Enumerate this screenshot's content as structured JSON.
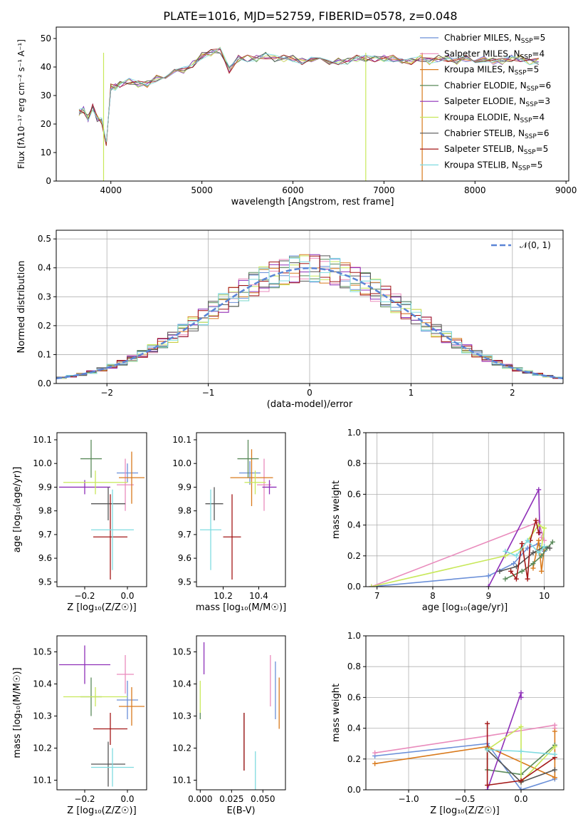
{
  "figure_title": "PLATE=1016, MJD=52759, FIBERID=0578, z=0.048",
  "legend_entries": [
    {
      "name": "Chabrier MILES",
      "sub": "SSP",
      "n": "5",
      "color": "#6a8fd8"
    },
    {
      "name": "Salpeter MILES",
      "sub": "SSP",
      "n": "4",
      "color": "#e98bbc"
    },
    {
      "name": "Kroupa MILES",
      "sub": "SSP",
      "n": "5",
      "color": "#d97a1c"
    },
    {
      "name": "Chabrier ELODIE",
      "sub": "SSP",
      "n": "6",
      "color": "#5a8a5a"
    },
    {
      "name": "Salpeter ELODIE",
      "sub": "SSP",
      "n": "3",
      "color": "#8e2fb8"
    },
    {
      "name": "Kroupa ELODIE",
      "sub": "SSP",
      "n": "4",
      "color": "#c8e85a"
    },
    {
      "name": "Chabrier STELIB",
      "sub": "SSP",
      "n": "6",
      "color": "#555555"
    },
    {
      "name": "Salpeter STELIB",
      "sub": "SSP",
      "n": "5",
      "color": "#a31717"
    },
    {
      "name": "Kroupa STELIB",
      "sub": "SSP",
      "n": "5",
      "color": "#7fdbe0"
    }
  ],
  "chart_data": [
    {
      "type": "line",
      "xlabel": "wavelength [Angstrom, rest frame]",
      "ylabel": "Flux [fλ10⁻¹⁷ erg cm⁻² s⁻¹ A⁻¹]",
      "xlim": [
        3400,
        9030
      ],
      "ylim": [
        0,
        54
      ],
      "xticks": [
        "4000",
        "5000",
        "6000",
        "7000",
        "8000",
        "9000"
      ],
      "yticks": [
        "0",
        "10",
        "20",
        "30",
        "40",
        "50"
      ],
      "x": [
        3650,
        3700,
        3750,
        3800,
        3850,
        3900,
        3950,
        4000,
        4050,
        4100,
        4200,
        4300,
        4400,
        4500,
        4600,
        4700,
        4800,
        4900,
        5000,
        5100,
        5200,
        5300,
        5400,
        5500,
        5600,
        5700,
        5800,
        5900,
        6000,
        6100,
        6200,
        6300,
        6400,
        6500,
        6600,
        6700,
        6800,
        6900,
        7000,
        7100,
        7200,
        7300,
        7400,
        7500,
        7600,
        7700,
        7800,
        7900,
        8000,
        8100,
        8200,
        8300,
        8400,
        8500,
        8600,
        8700
      ],
      "y": [
        24,
        25,
        22,
        26,
        22,
        21,
        13,
        33,
        33,
        34,
        35,
        34,
        34,
        36,
        37,
        38,
        39,
        41,
        44,
        45,
        46,
        39,
        43,
        43,
        43,
        44,
        43,
        43,
        43,
        42,
        43,
        42,
        42,
        42,
        42,
        43,
        43,
        43,
        43,
        43,
        42,
        42,
        43,
        42,
        43,
        43,
        42,
        43,
        42,
        43,
        42,
        42,
        43,
        43,
        42,
        42
      ],
      "dropouts": [
        {
          "x": 3920,
          "series": 5
        },
        {
          "x": 6800,
          "series": 5
        },
        {
          "x": 7420,
          "series": 2
        }
      ],
      "grid": false,
      "legend": "top-right"
    },
    {
      "type": "step",
      "xlabel": "(data-model)/error",
      "ylabel": "Normed distribution",
      "xlim": [
        -2.5,
        2.5
      ],
      "ylim": [
        0,
        0.53
      ],
      "xticks": [
        "−2",
        "−1",
        "0",
        "1",
        "2"
      ],
      "yticks": [
        "0.0",
        "0.1",
        "0.2",
        "0.3",
        "0.4",
        "0.5"
      ],
      "bin_edges_from": -2.5,
      "bin_width": 0.1,
      "bins": 50,
      "reference_label": "𝒩(0, 1)",
      "grid": true,
      "legend": "top-right"
    },
    {
      "type": "errorbar",
      "xlabel": "Z [log₁₀(Z/Z☉)]",
      "ylabel": "age [log₁₀(age/yr)]",
      "xlim": [
        -0.33,
        0.09
      ],
      "ylim": [
        9.48,
        10.13
      ],
      "xticks": [
        "−0.2",
        "0.0"
      ],
      "yticks": [
        "9.5",
        "9.6",
        "9.7",
        "9.8",
        "9.9",
        "10.0",
        "10.1"
      ],
      "points": [
        {
          "x": 0.0,
          "xerr": 0.05,
          "y": 9.96,
          "yerr": 0.04
        },
        {
          "x": -0.01,
          "xerr": 0.04,
          "y": 9.91,
          "yerr": 0.11
        },
        {
          "x": 0.02,
          "xerr": 0.06,
          "y": 9.94,
          "yerr": 0.11
        },
        {
          "x": -0.17,
          "xerr": 0.05,
          "y": 10.02,
          "yerr": 0.08
        },
        {
          "x": -0.2,
          "xerr": 0.12,
          "y": 9.9,
          "yerr": 0.03
        },
        {
          "x": -0.15,
          "xerr": 0.15,
          "y": 9.92,
          "yerr": 0.05
        },
        {
          "x": -0.09,
          "xerr": 0.08,
          "y": 9.83,
          "yerr": 0.07
        },
        {
          "x": -0.08,
          "xerr": 0.08,
          "y": 9.69,
          "yerr": 0.18
        },
        {
          "x": -0.07,
          "xerr": 0.1,
          "y": 9.72,
          "yerr": 0.17
        }
      ]
    },
    {
      "type": "errorbar",
      "xlabel": "mass [log₁₀(M/M☉)]",
      "ylabel": "",
      "xlim": [
        10.05,
        10.55
      ],
      "ylim": [
        9.48,
        10.13
      ],
      "xticks": [
        "10.2",
        "10.4"
      ],
      "yticks": [
        "9.5",
        "9.6",
        "9.7",
        "9.8",
        "9.9",
        "10.0",
        "10.1"
      ],
      "points": [
        {
          "x": 10.35,
          "xerr": 0.06,
          "y": 9.96,
          "yerr": 0.05
        },
        {
          "x": 10.43,
          "xerr": 0.04,
          "y": 9.91,
          "yerr": 0.11
        },
        {
          "x": 10.36,
          "xerr": 0.12,
          "y": 9.94,
          "yerr": 0.12
        },
        {
          "x": 10.34,
          "xerr": 0.06,
          "y": 10.02,
          "yerr": 0.08
        },
        {
          "x": 10.46,
          "xerr": 0.04,
          "y": 9.9,
          "yerr": 0.03
        },
        {
          "x": 10.38,
          "xerr": 0.06,
          "y": 9.92,
          "yerr": 0.05
        },
        {
          "x": 10.15,
          "xerr": 0.05,
          "y": 9.83,
          "yerr": 0.07
        },
        {
          "x": 10.25,
          "xerr": 0.05,
          "y": 9.69,
          "yerr": 0.18
        },
        {
          "x": 10.13,
          "xerr": 0.06,
          "y": 9.72,
          "yerr": 0.17
        }
      ]
    },
    {
      "type": "line",
      "xlabel": "age [log₁₀(age/yr)]",
      "ylabel": "mass weight",
      "xlim": [
        6.8,
        10.35
      ],
      "ylim": [
        0,
        1.0
      ],
      "xticks": [
        "7",
        "8",
        "9",
        "10"
      ],
      "yticks": [
        "0.0",
        "0.2",
        "0.4",
        "0.6",
        "0.8",
        "1.0"
      ],
      "grid": true,
      "series": [
        {
          "x": [
            6.9,
            9.0,
            9.45,
            9.7,
            9.9,
            10.0
          ],
          "y": [
            0.0,
            0.07,
            0.15,
            0.25,
            0.28,
            0.23
          ]
        },
        {
          "x": [
            6.9,
            9.9,
            10.0,
            9.95
          ],
          "y": [
            0.0,
            0.42,
            0.3,
            0.32
          ]
        },
        {
          "x": [
            9.8,
            9.9,
            9.95,
            10.0
          ],
          "y": [
            0.12,
            0.3,
            0.1,
            0.25
          ]
        },
        {
          "x": [
            9.3,
            9.6,
            9.8,
            9.95,
            10.05,
            10.15
          ],
          "y": [
            0.05,
            0.1,
            0.15,
            0.2,
            0.25,
            0.29
          ]
        },
        {
          "x": [
            9.0,
            9.9,
            9.92
          ],
          "y": [
            0.0,
            0.63,
            0.35
          ]
        },
        {
          "x": [
            6.9,
            9.3,
            9.6,
            9.9,
            10.0,
            9.95
          ],
          "y": [
            0.0,
            0.2,
            0.25,
            0.4,
            0.38,
            0.25
          ]
        },
        {
          "x": [
            9.2,
            9.5,
            9.8,
            10.0,
            10.1
          ],
          "y": [
            0.1,
            0.13,
            0.22,
            0.26,
            0.25
          ]
        },
        {
          "x": [
            9.4,
            9.5,
            9.6,
            9.7,
            9.75,
            9.85,
            9.9
          ],
          "y": [
            0.1,
            0.05,
            0.28,
            0.05,
            0.3,
            0.43,
            0.35
          ]
        },
        {
          "x": [
            9.3,
            9.5,
            9.7,
            9.9,
            10.0
          ],
          "y": [
            0.23,
            0.2,
            0.3,
            0.22,
            0.26
          ]
        }
      ]
    },
    {
      "type": "errorbar",
      "xlabel": "Z [log₁₀(Z/Z☉)]",
      "ylabel": "mass [log₁₀(M/M☉)]",
      "xlim": [
        -0.33,
        0.09
      ],
      "ylim": [
        10.07,
        10.55
      ],
      "xticks": [
        "−0.2",
        "0.0"
      ],
      "yticks": [
        "10.1",
        "10.2",
        "10.3",
        "10.4",
        "10.5"
      ],
      "points": [
        {
          "x": 0.0,
          "xerr": 0.05,
          "y": 10.35,
          "yerr": 0.06
        },
        {
          "x": -0.01,
          "xerr": 0.04,
          "y": 10.43,
          "yerr": 0.06
        },
        {
          "x": 0.02,
          "xerr": 0.06,
          "y": 10.33,
          "yerr": 0.06
        },
        {
          "x": -0.17,
          "xerr": 0.05,
          "y": 10.36,
          "yerr": 0.06
        },
        {
          "x": -0.2,
          "xerr": 0.12,
          "y": 10.46,
          "yerr": 0.06
        },
        {
          "x": -0.15,
          "xerr": 0.15,
          "y": 10.36,
          "yerr": 0.03
        },
        {
          "x": -0.09,
          "xerr": 0.08,
          "y": 10.15,
          "yerr": 0.07
        },
        {
          "x": -0.08,
          "xerr": 0.08,
          "y": 10.26,
          "yerr": 0.05
        },
        {
          "x": -0.07,
          "xerr": 0.1,
          "y": 10.14,
          "yerr": 0.06
        }
      ]
    },
    {
      "type": "errorbar",
      "xlabel": "E(B-V)",
      "ylabel": "",
      "xlim": [
        -0.003,
        0.068
      ],
      "ylim": [
        10.07,
        10.55
      ],
      "xticks": [
        "0.000",
        "0.025",
        "0.050"
      ],
      "yticks": [
        "10.1",
        "10.2",
        "10.3",
        "10.4",
        "10.5"
      ],
      "points": [
        {
          "x": 0.06,
          "xerr": 0,
          "y": 10.38,
          "yerr": 0.09
        },
        {
          "x": 0.056,
          "xerr": 0,
          "y": 10.41,
          "yerr": 0.08
        },
        {
          "x": 0.063,
          "xerr": 0,
          "y": 10.34,
          "yerr": 0.08
        },
        {
          "x": 0.0,
          "xerr": 0,
          "y": 10.3,
          "yerr": 0.01
        },
        {
          "x": 0.003,
          "xerr": 0,
          "y": 10.48,
          "yerr": 0.05
        },
        {
          "x": 0.0,
          "xerr": 0,
          "y": 10.36,
          "yerr": 0.05
        },
        {
          "x": 0.035,
          "xerr": 0,
          "y": 10.22,
          "yerr": 0.09
        },
        {
          "x": 0.035,
          "xerr": 0,
          "y": 10.22,
          "yerr": 0.09
        },
        {
          "x": 0.044,
          "xerr": 0,
          "y": 10.13,
          "yerr": 0.06
        }
      ]
    },
    {
      "type": "line",
      "xlabel": "Z [log₁₀(Z/Z☉)]",
      "ylabel": "mass weight",
      "xlim": [
        -1.38,
        0.38
      ],
      "ylim": [
        0,
        1.0
      ],
      "xticks": [
        "−1.0",
        "−0.5",
        "0.0"
      ],
      "yticks": [
        "0.0",
        "0.2",
        "0.4",
        "0.6",
        "0.8",
        "1.0"
      ],
      "grid": true,
      "series": [
        {
          "x": [
            -1.3,
            -0.3,
            0.0,
            0.3
          ],
          "y": [
            0.22,
            0.3,
            0.0,
            0.07
          ]
        },
        {
          "x": [
            -1.3,
            -0.3,
            0.3,
            0.3
          ],
          "y": [
            0.24,
            0.35,
            0.42,
            0.4
          ]
        },
        {
          "x": [
            -1.3,
            -0.3,
            0.3,
            0.3
          ],
          "y": [
            0.17,
            0.28,
            0.08,
            0.38
          ]
        },
        {
          "x": [
            -0.3,
            -0.3,
            0.0,
            0.3
          ],
          "y": [
            0.27,
            0.13,
            0.1,
            0.29
          ]
        },
        {
          "x": [
            -0.3,
            0.0,
            0.0
          ],
          "y": [
            0.0,
            0.63,
            0.6
          ]
        },
        {
          "x": [
            -0.3,
            0.0,
            0.0,
            0.3
          ],
          "y": [
            0.26,
            0.41,
            0.05,
            0.28
          ]
        },
        {
          "x": [
            -0.3,
            0.0,
            0.3
          ],
          "y": [
            0.26,
            0.05,
            0.13
          ]
        },
        {
          "x": [
            -0.3,
            -0.3,
            0.0,
            0.3
          ],
          "y": [
            0.43,
            0.03,
            0.06,
            0.21
          ]
        },
        {
          "x": [
            -0.3,
            0.0,
            0.3
          ],
          "y": [
            0.26,
            0.25,
            0.23
          ]
        }
      ]
    }
  ]
}
